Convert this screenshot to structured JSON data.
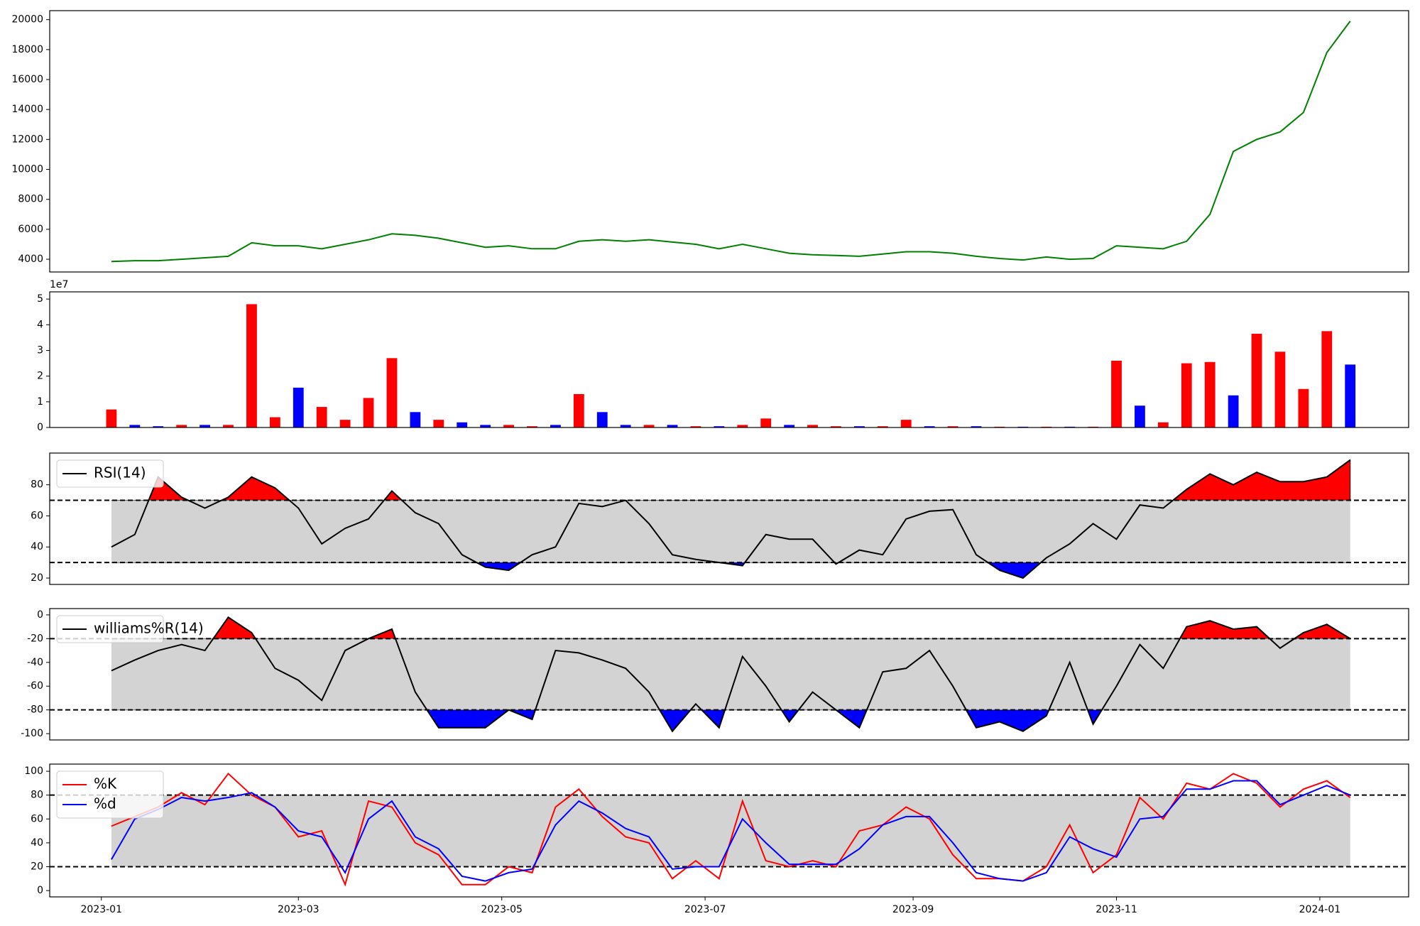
{
  "chart_data": [
    {
      "type": "line",
      "x": [
        0,
        1,
        2,
        3,
        4,
        5,
        6,
        7,
        8,
        9,
        10,
        11,
        12,
        13,
        14,
        15,
        16,
        17,
        18,
        19,
        20,
        21,
        22,
        23,
        24,
        25,
        26,
        27,
        28,
        29,
        30,
        31,
        32,
        33,
        34,
        35,
        36,
        37,
        38,
        39,
        40,
        41,
        42,
        43,
        44,
        45,
        46,
        47,
        48,
        49,
        50,
        51,
        52,
        53
      ],
      "xlim": [
        -2.64,
        55.5
      ],
      "ylim": [
        3150,
        20600
      ],
      "yticks": [
        4000,
        6000,
        8000,
        10000,
        12000,
        14000,
        16000,
        18000,
        20000
      ],
      "series": [
        {
          "color": "green",
          "values": [
            3850,
            3900,
            3900,
            4000,
            4100,
            4200,
            5100,
            4900,
            4900,
            4700,
            5000,
            5300,
            5700,
            5600,
            5400,
            5100,
            4800,
            4900,
            4700,
            4700,
            5200,
            5300,
            5200,
            5300,
            5150,
            5000,
            4700,
            5000,
            4700,
            4400,
            4300,
            4250,
            4200,
            4350,
            4500,
            4500,
            4400,
            4200,
            4050,
            3950,
            4150,
            4000,
            4050,
            4900,
            4800,
            4700,
            5200,
            7000,
            11200,
            12000,
            12500,
            13800,
            17800,
            19900
          ]
        }
      ]
    },
    {
      "type": "bar",
      "x": [
        0,
        1,
        2,
        3,
        4,
        5,
        6,
        7,
        8,
        9,
        10,
        11,
        12,
        13,
        14,
        15,
        16,
        17,
        18,
        19,
        20,
        21,
        22,
        23,
        24,
        25,
        26,
        27,
        28,
        29,
        30,
        31,
        32,
        33,
        34,
        35,
        36,
        37,
        38,
        39,
        40,
        41,
        42,
        43,
        44,
        45,
        46,
        47,
        48,
        49,
        50,
        51,
        52,
        53
      ],
      "xlim": [
        -2.64,
        55.5
      ],
      "ylim": [
        0,
        52800000
      ],
      "y_offset_label": "1e7",
      "yticks": [
        0,
        {
          "value": 10000000,
          "label": "1"
        },
        {
          "value": 20000000,
          "label": "2"
        },
        {
          "value": 30000000,
          "label": "3"
        },
        {
          "value": 40000000,
          "label": "4"
        },
        {
          "value": 50000000,
          "label": "5"
        }
      ],
      "values": [
        7000000,
        1000000,
        500000,
        1000000,
        1000000,
        1000000,
        48000000,
        4000000,
        15500000,
        8000000,
        3000000,
        11500000,
        27000000,
        6000000,
        3000000,
        2000000,
        1000000,
        1000000,
        500000,
        1000000,
        13000000,
        6000000,
        1000000,
        1000000,
        1000000,
        500000,
        500000,
        1000000,
        3500000,
        1000000,
        1000000,
        500000,
        500000,
        500000,
        3000000,
        500000,
        500000,
        500000,
        300000,
        300000,
        300000,
        300000,
        300000,
        26000000,
        8500000,
        2000000,
        25000000,
        25500000,
        12500000,
        36500000,
        29500000,
        15000000,
        37500000,
        24500000
      ],
      "colors": [
        "red",
        "blue",
        "blue",
        "red",
        "blue",
        "red",
        "red",
        "red",
        "blue",
        "red",
        "red",
        "red",
        "red",
        "blue",
        "red",
        "blue",
        "blue",
        "red",
        "red",
        "blue",
        "red",
        "blue",
        "blue",
        "red",
        "blue",
        "red",
        "blue",
        "red",
        "red",
        "blue",
        "red",
        "red",
        "blue",
        "red",
        "red",
        "blue",
        "red",
        "blue",
        "red",
        "blue",
        "red",
        "blue",
        "red",
        "red",
        "blue",
        "red",
        "red",
        "red",
        "blue",
        "red",
        "red",
        "red",
        "red",
        "blue"
      ]
    },
    {
      "type": "line",
      "x": [
        0,
        1,
        2,
        3,
        4,
        5,
        6,
        7,
        8,
        9,
        10,
        11,
        12,
        13,
        14,
        15,
        16,
        17,
        18,
        19,
        20,
        21,
        22,
        23,
        24,
        25,
        26,
        27,
        28,
        29,
        30,
        31,
        32,
        33,
        34,
        35,
        36,
        37,
        38,
        39,
        40,
        41,
        42,
        43,
        44,
        45,
        46,
        47,
        48,
        49,
        50,
        51,
        52,
        53
      ],
      "xlim": [
        -2.64,
        55.5
      ],
      "ylim": [
        15.9,
        100.4
      ],
      "yticks": [
        20,
        40,
        60,
        80
      ],
      "thresholds": [
        30,
        70
      ],
      "band_color": "lightgray",
      "above_color": "red",
      "below_color": "blue",
      "legend": "upper left",
      "series": [
        {
          "name": "RSI(14)",
          "color": "black",
          "values": [
            40,
            48,
            85,
            72,
            65,
            72,
            85,
            78,
            65,
            42,
            52,
            58,
            76,
            62,
            55,
            35,
            27,
            25,
            35,
            40,
            68,
            66,
            70,
            55,
            35,
            32,
            30,
            28,
            48,
            45,
            45,
            29,
            38,
            35,
            58,
            63,
            64,
            35,
            25,
            20,
            33,
            42,
            55,
            45,
            67,
            65,
            77,
            87,
            80,
            88,
            82,
            82,
            85,
            96
          ]
        }
      ]
    },
    {
      "type": "line",
      "x": [
        0,
        1,
        2,
        3,
        4,
        5,
        6,
        7,
        8,
        9,
        10,
        11,
        12,
        13,
        14,
        15,
        16,
        17,
        18,
        19,
        20,
        21,
        22,
        23,
        24,
        25,
        26,
        27,
        28,
        29,
        30,
        31,
        32,
        33,
        34,
        35,
        36,
        37,
        38,
        39,
        40,
        41,
        42,
        43,
        44,
        45,
        46,
        47,
        48,
        49,
        50,
        51,
        52,
        53
      ],
      "xlim": [
        -2.64,
        55.5
      ],
      "ylim": [
        -105.3,
        5.3
      ],
      "yticks": [
        -100,
        -80,
        -60,
        -40,
        -20,
        0
      ],
      "thresholds": [
        -80,
        -20
      ],
      "band_color": "lightgray",
      "above_color": "red",
      "below_color": "blue",
      "legend": "upper left",
      "series": [
        {
          "name": "williams%R(14)",
          "color": "black",
          "values": [
            -47,
            -38,
            -30,
            -25,
            -30,
            -2,
            -15,
            -45,
            -55,
            -72,
            -30,
            -20,
            -12,
            -65,
            -95,
            -95,
            -95,
            -80,
            -88,
            -30,
            -32,
            -38,
            -45,
            -65,
            -98,
            -75,
            -95,
            -35,
            -60,
            -90,
            -65,
            -80,
            -95,
            -48,
            -45,
            -30,
            -60,
            -95,
            -90,
            -98,
            -85,
            -40,
            -92,
            -60,
            -25,
            -45,
            -10,
            -5,
            -12,
            -10,
            -28,
            -15,
            -8,
            -20
          ]
        }
      ]
    },
    {
      "type": "line",
      "x": [
        0,
        1,
        2,
        3,
        4,
        5,
        6,
        7,
        8,
        9,
        10,
        11,
        12,
        13,
        14,
        15,
        16,
        17,
        18,
        19,
        20,
        21,
        22,
        23,
        24,
        25,
        26,
        27,
        28,
        29,
        30,
        31,
        32,
        33,
        34,
        35,
        36,
        37,
        38,
        39,
        40,
        41,
        42,
        43,
        44,
        45,
        46,
        47,
        48,
        49,
        50,
        51,
        52,
        53
      ],
      "xlim": [
        -2.64,
        55.5
      ],
      "ylim": [
        -5.3,
        106
      ],
      "yticks": [
        0,
        20,
        40,
        60,
        80,
        100
      ],
      "thresholds": [
        20,
        80
      ],
      "band_color": "lightgray",
      "legend": "upper left",
      "xticks": [
        {
          "value": -0.43,
          "label": "2023-01"
        },
        {
          "value": 8.0,
          "label": "2023-03"
        },
        {
          "value": 16.7,
          "label": "2023-05"
        },
        {
          "value": 25.4,
          "label": "2023-07"
        },
        {
          "value": 34.3,
          "label": "2023-09"
        },
        {
          "value": 43.0,
          "label": "2023-11"
        },
        {
          "value": 51.7,
          "label": "2024-01"
        }
      ],
      "series": [
        {
          "name": "%K",
          "color": "red",
          "values": [
            54,
            62,
            70,
            82,
            72,
            98,
            80,
            70,
            45,
            50,
            5,
            75,
            70,
            40,
            30,
            5,
            5,
            20,
            15,
            70,
            85,
            62,
            45,
            40,
            10,
            25,
            10,
            75,
            25,
            20,
            25,
            20,
            50,
            55,
            70,
            60,
            30,
            10,
            10,
            8,
            20,
            55,
            15,
            30,
            78,
            60,
            90,
            85,
            98,
            90,
            70,
            85,
            92,
            78
          ]
        },
        {
          "name": "%d",
          "color": "blue",
          "values": [
            26,
            60,
            68,
            78,
            75,
            78,
            82,
            70,
            50,
            45,
            15,
            60,
            75,
            45,
            35,
            12,
            8,
            15,
            18,
            55,
            75,
            65,
            52,
            45,
            18,
            20,
            20,
            60,
            40,
            22,
            22,
            22,
            35,
            55,
            62,
            62,
            40,
            15,
            10,
            8,
            15,
            45,
            35,
            28,
            60,
            62,
            85,
            85,
            92,
            92,
            72,
            80,
            88,
            80
          ]
        }
      ]
    }
  ]
}
